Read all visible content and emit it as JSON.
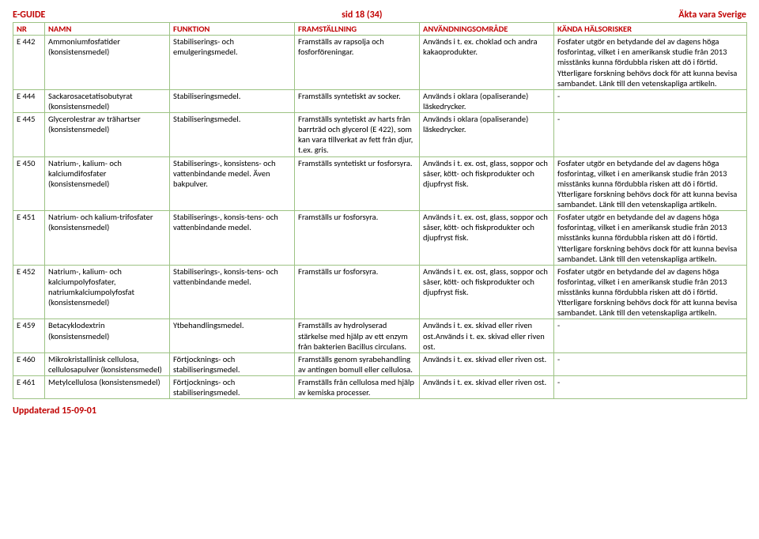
{
  "header": {
    "left": "E-GUIDE",
    "center": "sid 18 (34)",
    "right": "Äkta vara Sverige"
  },
  "columns": {
    "nr": "NR",
    "namn": "NAMN",
    "funktion": "FUNKTION",
    "framstallning": "FRAMSTÄLLNING",
    "anvandning": "ANVÄNDNINGSOMRÅDE",
    "risker": "KÄNDA HÄLSORISKER"
  },
  "rows": [
    {
      "nr": "E 442",
      "namn": "Ammoniumfosfatider (konsistensmedel)",
      "funktion": "Stabiliserings- och emulgeringsmedel.",
      "fram": "Framställs av rapsolja och fosforföreningar.",
      "anv": "Används i t. ex. choklad och andra kakaoprodukter.",
      "risk": "Fosfater utgör en betydande del av dagens höga fosforintag, vilket i en amerikansk studie från 2013 misstänks kunna fördubbla risken att dö i förtid. Ytterligare forskning behövs dock för att kunna bevisa sambandet. Länk till den vetenskapliga artikeln."
    },
    {
      "nr": "E 444",
      "namn": "Sackarosacetatisobutyrat (konsistensmedel)",
      "funktion": "Stabiliseringsmedel.",
      "fram": "Framställs syntetiskt av socker.",
      "anv": "Används i oklara (opaliserande) läskedrycker.",
      "risk": "-"
    },
    {
      "nr": "E 445",
      "namn": "Glycerolestrar av trähartser (konsistensmedel)",
      "funktion": "Stabiliseringsmedel.",
      "fram": "Framställs syntetiskt av harts från barrträd och glycerol (E 422), som kan vara tillverkat av fett från djur, t.ex. gris.",
      "anv": "Används i oklara (opaliserande) läskedrycker.",
      "risk": "-"
    },
    {
      "nr": "E 450",
      "namn": "Natrium-, kalium- och kalciumdifosfater (konsistensmedel)",
      "funktion": "Stabiliserings-, konsistens- och vattenbindande medel. Även bakpulver.",
      "fram": "Framställs syntetiskt ur fosforsyra.",
      "anv": "Används i t. ex. ost, glass, soppor och såser, kött- och fiskprodukter och djupfryst fisk.",
      "risk": "Fosfater utgör en betydande del av dagens höga fosforintag, vilket i en amerikansk studie från 2013 misstänks kunna fördubbla risken att dö i förtid. Ytterligare forskning behövs dock för att kunna bevisa sambandet. Länk till den vetenskapliga artikeln."
    },
    {
      "nr": "E 451",
      "namn": "Natrium- och kalium-trifosfater (konsistensmedel)",
      "funktion": "Stabiliserings-, konsis-tens- och vattenbindande medel.",
      "fram": "Framställs ur fosforsyra.",
      "anv": "Används i t. ex. ost, glass, soppor och såser, kött- och fiskprodukter och djupfryst fisk.",
      "risk": "Fosfater utgör en betydande del av dagens höga fosforintag, vilket i en amerikansk studie från 2013 misstänks kunna fördubbla risken att dö i förtid. Ytterligare forskning behövs dock för att kunna bevisa sambandet. Länk till den vetenskapliga artikeln."
    },
    {
      "nr": "E 452",
      "namn": "Natrium-, kalium- och kalciumpolyfosfater, natriumkalciumpolyfosfat (konsistensmedel)",
      "funktion": "Stabiliserings-, konsis-tens- och vattenbindande medel.",
      "fram": "Framställs ur fosforsyra.",
      "anv": "Används i t. ex. ost, glass, soppor och såser, kött- och fiskprodukter och djupfryst fisk.",
      "risk": "Fosfater utgör en betydande del av dagens höga fosforintag, vilket i en amerikansk studie från 2013 misstänks kunna fördubbla risken att dö i förtid. Ytterligare forskning behövs dock för att kunna bevisa sambandet. Länk till den vetenskapliga artikeln."
    },
    {
      "nr": "E 459",
      "namn": "Betacyklodextrin (konsistensmedel)",
      "funktion": "Ytbehandlingsmedel.",
      "fram": "Framställs av hydrolyserad stärkelse med hjälp av ett enzym från bakterien Bacillus circulans.",
      "anv": "Används i t. ex. skivad eller riven ost.Används i t. ex. skivad eller riven ost.",
      "risk": "-"
    },
    {
      "nr": "E 460",
      "namn": "Mikrokristallinisk cellulosa, cellulosapulver (konsistensmedel)",
      "funktion": "Förtjocknings- och stabiliseringsmedel.",
      "fram": "Framställs genom syrabehandling av antingen bomull eller cellulosa.",
      "anv": "Används i t. ex. skivad eller riven ost.",
      "risk": "-"
    },
    {
      "nr": "E 461",
      "namn": "Metylcellulosa (konsistensmedel)",
      "funktion": "Förtjocknings- och stabiliseringsmedel.",
      "fram": "Framställs från cellulosa med hjälp av kemiska processer.",
      "anv": "Används i t. ex. skivad eller riven ost.",
      "risk": "-"
    }
  ],
  "footer": "Uppdaterad 15-09-01"
}
